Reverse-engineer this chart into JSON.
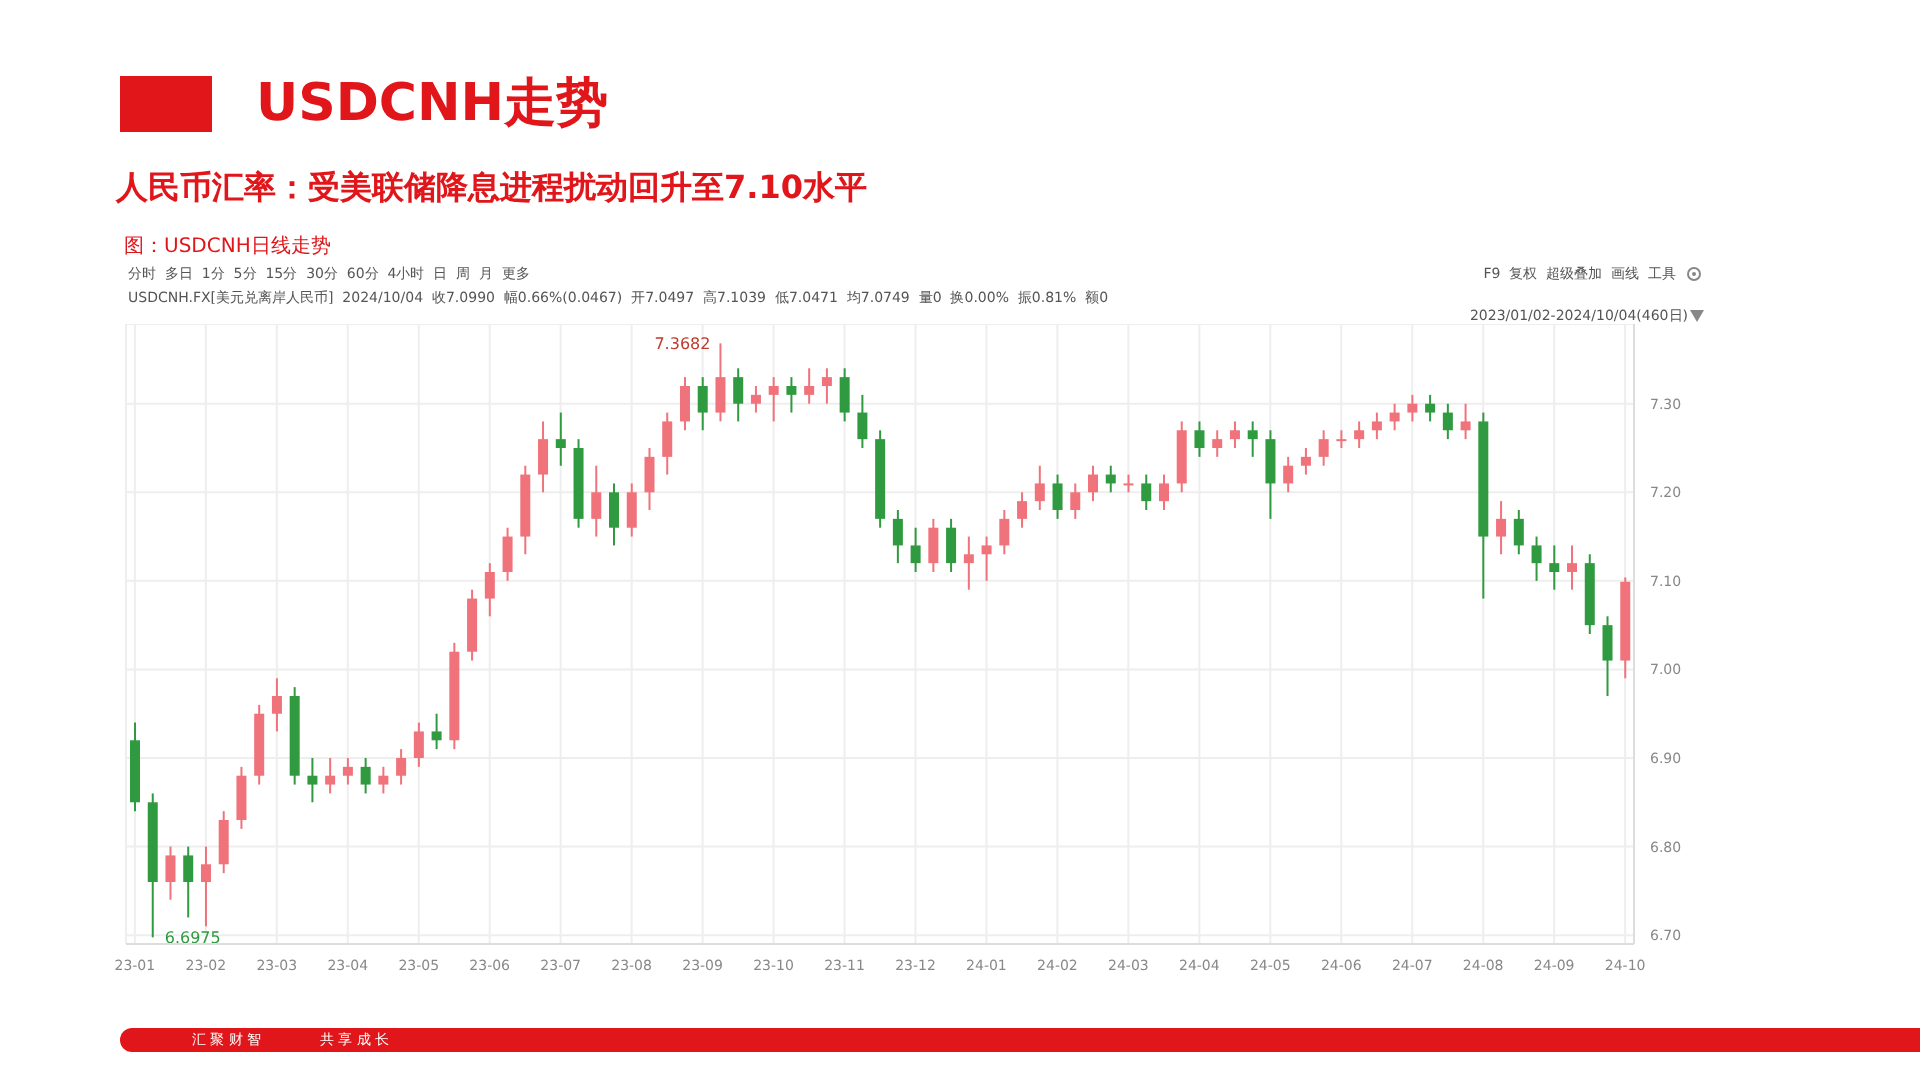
{
  "chart_data": {
    "type": "candlestick",
    "title": "USDCNH走势",
    "subtitle": "人民币汇率：受美联储降息进程扰动回升至7.10水平",
    "annotations": [
      "图：USDCNH日线走势",
      "分时  多日  1分  5分  15分  30分  60分  4小时  日  周  月  更多",
      "F9  复权  超级叠加  画线  工具",
      "USDCNH.FX[美元兑离岸人民币]  2024/10/04  收7.0990  幅0.66%(0.0467)  开7.0497  高7.1039  低7.0471  均7.0749  量0  换0.00%  振0.81%  额0",
      "2023/01/02-2024/10/04(460日)",
      "7.3682",
      "6.6975",
      "汇 聚 财 智",
      "共 享 成 长"
    ],
    "categories": [
      "23-01",
      null,
      null,
      null,
      "23-02",
      null,
      null,
      null,
      "23-03",
      null,
      null,
      null,
      "23-04",
      null,
      null,
      null,
      "23-05",
      null,
      null,
      null,
      "23-06",
      null,
      null,
      null,
      "23-07",
      null,
      null,
      null,
      "23-08",
      null,
      null,
      null,
      "23-09",
      null,
      null,
      null,
      "23-10",
      null,
      null,
      null,
      "23-11",
      null,
      null,
      null,
      "23-12",
      null,
      null,
      null,
      "24-01",
      null,
      null,
      null,
      "24-02",
      null,
      null,
      null,
      "24-03",
      null,
      null,
      null,
      "24-04",
      null,
      null,
      null,
      "24-05",
      null,
      null,
      null,
      "24-06",
      null,
      null,
      null,
      "24-07",
      null,
      null,
      null,
      "24-08",
      null,
      null,
      null,
      "24-09",
      null,
      null,
      null,
      "24-10"
    ],
    "ohlc": [
      [
        6.92,
        6.94,
        6.84,
        6.85
      ],
      [
        6.85,
        6.86,
        6.6975,
        6.76
      ],
      [
        6.76,
        6.8,
        6.74,
        6.79
      ],
      [
        6.79,
        6.8,
        6.72,
        6.76
      ],
      [
        6.76,
        6.8,
        6.71,
        6.78
      ],
      [
        6.78,
        6.84,
        6.77,
        6.83
      ],
      [
        6.83,
        6.89,
        6.82,
        6.88
      ],
      [
        6.88,
        6.96,
        6.87,
        6.95
      ],
      [
        6.95,
        6.99,
        6.93,
        6.97
      ],
      [
        6.97,
        6.98,
        6.87,
        6.88
      ],
      [
        6.88,
        6.9,
        6.85,
        6.87
      ],
      [
        6.87,
        6.9,
        6.86,
        6.88
      ],
      [
        6.88,
        6.9,
        6.87,
        6.89
      ],
      [
        6.89,
        6.9,
        6.86,
        6.87
      ],
      [
        6.87,
        6.89,
        6.86,
        6.88
      ],
      [
        6.88,
        6.91,
        6.87,
        6.9
      ],
      [
        6.9,
        6.94,
        6.89,
        6.93
      ],
      [
        6.93,
        6.95,
        6.91,
        6.92
      ],
      [
        6.92,
        7.03,
        6.91,
        7.02
      ],
      [
        7.02,
        7.09,
        7.01,
        7.08
      ],
      [
        7.08,
        7.12,
        7.06,
        7.11
      ],
      [
        7.11,
        7.16,
        7.1,
        7.15
      ],
      [
        7.15,
        7.23,
        7.13,
        7.22
      ],
      [
        7.22,
        7.28,
        7.2,
        7.26
      ],
      [
        7.26,
        7.29,
        7.23,
        7.25
      ],
      [
        7.25,
        7.26,
        7.16,
        7.17
      ],
      [
        7.17,
        7.23,
        7.15,
        7.2
      ],
      [
        7.2,
        7.21,
        7.14,
        7.16
      ],
      [
        7.16,
        7.21,
        7.15,
        7.2
      ],
      [
        7.2,
        7.25,
        7.18,
        7.24
      ],
      [
        7.24,
        7.29,
        7.22,
        7.28
      ],
      [
        7.28,
        7.33,
        7.27,
        7.32
      ],
      [
        7.32,
        7.33,
        7.27,
        7.29
      ],
      [
        7.29,
        7.3682,
        7.28,
        7.33
      ],
      [
        7.33,
        7.34,
        7.28,
        7.3
      ],
      [
        7.3,
        7.32,
        7.29,
        7.31
      ],
      [
        7.31,
        7.33,
        7.28,
        7.32
      ],
      [
        7.32,
        7.33,
        7.29,
        7.31
      ],
      [
        7.31,
        7.34,
        7.3,
        7.32
      ],
      [
        7.32,
        7.34,
        7.3,
        7.33
      ],
      [
        7.33,
        7.34,
        7.28,
        7.29
      ],
      [
        7.29,
        7.31,
        7.25,
        7.26
      ],
      [
        7.26,
        7.27,
        7.16,
        7.17
      ],
      [
        7.17,
        7.18,
        7.12,
        7.14
      ],
      [
        7.14,
        7.16,
        7.11,
        7.12
      ],
      [
        7.12,
        7.17,
        7.11,
        7.16
      ],
      [
        7.16,
        7.17,
        7.11,
        7.12
      ],
      [
        7.12,
        7.15,
        7.09,
        7.13
      ],
      [
        7.13,
        7.15,
        7.1,
        7.14
      ],
      [
        7.14,
        7.18,
        7.13,
        7.17
      ],
      [
        7.17,
        7.2,
        7.16,
        7.19
      ],
      [
        7.19,
        7.23,
        7.18,
        7.21
      ],
      [
        7.21,
        7.22,
        7.17,
        7.18
      ],
      [
        7.18,
        7.21,
        7.17,
        7.2
      ],
      [
        7.2,
        7.23,
        7.19,
        7.22
      ],
      [
        7.22,
        7.23,
        7.2,
        7.21
      ],
      [
        7.21,
        7.22,
        7.2,
        7.21
      ],
      [
        7.21,
        7.22,
        7.18,
        7.19
      ],
      [
        7.19,
        7.22,
        7.18,
        7.21
      ],
      [
        7.21,
        7.28,
        7.2,
        7.27
      ],
      [
        7.27,
        7.28,
        7.24,
        7.25
      ],
      [
        7.25,
        7.27,
        7.24,
        7.26
      ],
      [
        7.26,
        7.28,
        7.25,
        7.27
      ],
      [
        7.27,
        7.28,
        7.24,
        7.26
      ],
      [
        7.26,
        7.27,
        7.17,
        7.21
      ],
      [
        7.21,
        7.24,
        7.2,
        7.23
      ],
      [
        7.23,
        7.25,
        7.22,
        7.24
      ],
      [
        7.24,
        7.27,
        7.23,
        7.26
      ],
      [
        7.26,
        7.27,
        7.25,
        7.26
      ],
      [
        7.26,
        7.28,
        7.25,
        7.27
      ],
      [
        7.27,
        7.29,
        7.26,
        7.28
      ],
      [
        7.28,
        7.3,
        7.27,
        7.29
      ],
      [
        7.29,
        7.31,
        7.28,
        7.3
      ],
      [
        7.3,
        7.31,
        7.28,
        7.29
      ],
      [
        7.29,
        7.3,
        7.26,
        7.27
      ],
      [
        7.27,
        7.3,
        7.26,
        7.28
      ],
      [
        7.28,
        7.29,
        7.08,
        7.15
      ],
      [
        7.15,
        7.19,
        7.13,
        7.17
      ],
      [
        7.17,
        7.18,
        7.13,
        7.14
      ],
      [
        7.14,
        7.15,
        7.1,
        7.12
      ],
      [
        7.12,
        7.14,
        7.09,
        7.11
      ],
      [
        7.11,
        7.14,
        7.09,
        7.12
      ],
      [
        7.12,
        7.13,
        7.04,
        7.05
      ],
      [
        7.05,
        7.06,
        6.97,
        7.01
      ],
      [
        7.01,
        7.1039,
        6.99,
        7.099
      ]
    ],
    "colors": [
      "#2f9a3f",
      "#2f9a3f",
      "#f0727a",
      "#2f9a3f",
      "#f0727a",
      "#f0727a",
      "#f0727a",
      "#f0727a",
      "#f0727a",
      "#2f9a3f",
      "#2f9a3f",
      "#f0727a",
      "#f0727a",
      "#2f9a3f",
      "#f0727a",
      "#f0727a",
      "#f0727a",
      "#2f9a3f",
      "#f0727a",
      "#f0727a",
      "#f0727a",
      "#f0727a",
      "#f0727a",
      "#f0727a",
      "#2f9a3f",
      "#2f9a3f",
      "#f0727a",
      "#2f9a3f",
      "#f0727a",
      "#f0727a",
      "#f0727a",
      "#f0727a",
      "#2f9a3f",
      "#f0727a",
      "#2f9a3f",
      "#f0727a",
      "#f0727a",
      "#2f9a3f",
      "#f0727a",
      "#f0727a",
      "#2f9a3f",
      "#2f9a3f",
      "#2f9a3f",
      "#2f9a3f",
      "#2f9a3f",
      "#f0727a",
      "#2f9a3f",
      "#f0727a",
      "#f0727a",
      "#f0727a",
      "#f0727a",
      "#f0727a",
      "#2f9a3f",
      "#f0727a",
      "#f0727a",
      "#2f9a3f",
      "#f0727a",
      "#2f9a3f",
      "#f0727a",
      "#f0727a",
      "#2f9a3f",
      "#f0727a",
      "#f0727a",
      "#2f9a3f",
      "#2f9a3f",
      "#f0727a",
      "#f0727a",
      "#f0727a",
      "#f0727a",
      "#f0727a",
      "#f0727a",
      "#f0727a",
      "#f0727a",
      "#2f9a3f",
      "#2f9a3f",
      "#f0727a",
      "#2f9a3f",
      "#f0727a",
      "#2f9a3f",
      "#2f9a3f",
      "#2f9a3f",
      "#f0727a",
      "#2f9a3f",
      "#2f9a3f",
      "#f0727a"
    ],
    "ylim": [
      6.69,
      7.39
    ],
    "yticks": [
      {
        "value": 6.7,
        "label": "6.70"
      },
      {
        "value": 6.8,
        "label": "6.80"
      },
      {
        "value": 6.9,
        "label": "6.90"
      },
      {
        "value": 7.0,
        "label": "7.00"
      },
      {
        "value": 7.1,
        "label": "7.10"
      },
      {
        "value": 7.2,
        "label": "7.20"
      },
      {
        "value": 7.3,
        "label": "7.30"
      }
    ],
    "grid": true,
    "legend": false
  }
}
